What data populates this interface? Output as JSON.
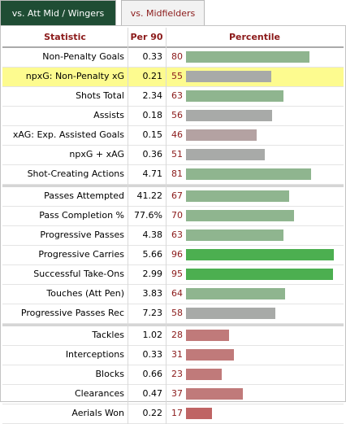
{
  "tabs": [
    {
      "label": "vs. Att Mid / Wingers",
      "active": true
    },
    {
      "label": "vs. Midfielders",
      "active": false
    }
  ],
  "headers": {
    "statistic": "Statistic",
    "per90": "Per 90",
    "percentile": "Percentile"
  },
  "colors": {
    "high": "#4caf50",
    "above": "#8fb58f",
    "mid": "#a8aaa8",
    "below": "#b4a2a2",
    "low": "#c07a7a",
    "very_low": "#bf6464",
    "text_accent": "#8b1a1a",
    "tab_active": "#1f4d34",
    "highlight": "#fdfb8f"
  },
  "groups": [
    {
      "rows": [
        {
          "stat": "Non-Penalty Goals",
          "per90": "0.33",
          "percentile": 80,
          "percentile_text": "80"
        },
        {
          "stat": "npxG: Non-Penalty xG",
          "per90": "0.21",
          "percentile": 55,
          "percentile_text": "55",
          "highlight": true
        },
        {
          "stat": "Shots Total",
          "per90": "2.34",
          "percentile": 63,
          "percentile_text": "63"
        },
        {
          "stat": "Assists",
          "per90": "0.18",
          "percentile": 56,
          "percentile_text": "56"
        },
        {
          "stat": "xAG: Exp. Assisted Goals",
          "per90": "0.15",
          "percentile": 46,
          "percentile_text": "46"
        },
        {
          "stat": "npxG + xAG",
          "per90": "0.36",
          "percentile": 51,
          "percentile_text": "51"
        },
        {
          "stat": "Shot-Creating Actions",
          "per90": "4.71",
          "percentile": 81,
          "percentile_text": "81"
        }
      ]
    },
    {
      "rows": [
        {
          "stat": "Passes Attempted",
          "per90": "41.22",
          "percentile": 67,
          "percentile_text": "67"
        },
        {
          "stat": "Pass Completion %",
          "per90": "77.6%",
          "percentile": 70,
          "percentile_text": "70"
        },
        {
          "stat": "Progressive Passes",
          "per90": "4.38",
          "percentile": 63,
          "percentile_text": "63"
        },
        {
          "stat": "Progressive Carries",
          "per90": "5.66",
          "percentile": 96,
          "percentile_text": "96"
        },
        {
          "stat": "Successful Take-Ons",
          "per90": "2.99",
          "percentile": 95,
          "percentile_text": "95"
        },
        {
          "stat": "Touches (Att Pen)",
          "per90": "3.83",
          "percentile": 64,
          "percentile_text": "64"
        },
        {
          "stat": "Progressive Passes Rec",
          "per90": "7.23",
          "percentile": 58,
          "percentile_text": "58"
        }
      ]
    },
    {
      "rows": [
        {
          "stat": "Tackles",
          "per90": "1.02",
          "percentile": 28,
          "percentile_text": "28"
        },
        {
          "stat": "Interceptions",
          "per90": "0.33",
          "percentile": 31,
          "percentile_text": "31"
        },
        {
          "stat": "Blocks",
          "per90": "0.66",
          "percentile": 23,
          "percentile_text": "23"
        },
        {
          "stat": "Clearances",
          "per90": "0.47",
          "percentile": 37,
          "percentile_text": "37"
        },
        {
          "stat": "Aerials Won",
          "per90": "0.22",
          "percentile": 17,
          "percentile_text": "17"
        }
      ]
    }
  ]
}
